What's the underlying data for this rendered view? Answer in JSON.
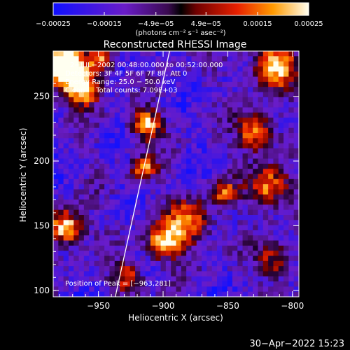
{
  "chart_data": {
    "type": "heatmap",
    "title": "Reconstructed RHESSI Image",
    "xlabel": "Heliocentric X (arcsec)",
    "ylabel": "Heliocentric Y (arcsec)",
    "xlim": [
      -985,
      -795
    ],
    "ylim": [
      95,
      285
    ],
    "xticks": [
      -950,
      -900,
      -850,
      -800
    ],
    "xtick_labels": [
      "−950",
      "−900",
      "−850",
      "−800"
    ],
    "yticks": [
      100,
      150,
      200,
      250
    ],
    "ytick_labels": [
      "100",
      "150",
      "200",
      "250"
    ],
    "colorbar": {
      "range": [
        -0.00025,
        0.00025
      ],
      "ticks": [
        -0.00025,
        -0.00015,
        -4.9e-05,
        4.9e-05,
        0.00015,
        0.00025
      ],
      "tick_labels": [
        "−0.00025",
        "−0.00015",
        "−4.9e−05",
        "4.9e−05",
        "0.00015",
        "0.00025"
      ],
      "units": "(photons cm⁻² s⁻¹ asec⁻²)"
    },
    "annotations": [
      "2−JUL−2002 00:48:00.000 to 00:52:00.000",
      "Detectors: 3F 4F 5F 6F 7F 8F, Att 0",
      "Energy Range: 25.0 − 50.0 keV",
      "Clean     Total counts: 7.09E+03"
    ],
    "peak_label": "Position of Peak = [−963,281]",
    "limb_line": [
      {
        "x": -937,
        "y": 95
      },
      {
        "x": -895,
        "y": 285
      }
    ],
    "grid": false,
    "footer": "30−Apr−2022 15:23"
  }
}
